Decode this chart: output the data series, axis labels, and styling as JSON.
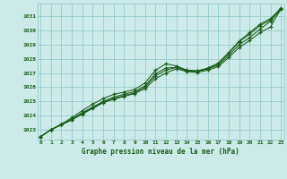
{
  "bg_color": "#cceae8",
  "grid_color": "#99cccc",
  "line_color": "#1a5c1a",
  "title": "Graphe pression niveau de la mer (hPa)",
  "ylabel_vals": [
    1023,
    1024,
    1025,
    1026,
    1027,
    1028,
    1029,
    1030,
    1031
  ],
  "xlim": [
    -0.3,
    23.3
  ],
  "ylim": [
    1022.3,
    1031.9
  ],
  "line1_x": [
    0,
    1,
    2,
    3,
    4,
    5,
    6,
    7,
    8,
    9,
    10,
    11,
    12,
    13,
    14,
    15,
    16,
    17,
    18,
    19,
    20,
    21,
    22,
    23
  ],
  "line1_y": [
    1022.5,
    1023.0,
    1023.35,
    1023.7,
    1024.15,
    1024.55,
    1024.95,
    1025.2,
    1025.4,
    1025.6,
    1026.0,
    1026.8,
    1027.2,
    1027.4,
    1027.2,
    1027.15,
    1027.3,
    1027.55,
    1028.25,
    1029.0,
    1029.5,
    1030.1,
    1030.65,
    1031.5
  ],
  "line2_x": [
    0,
    1,
    2,
    3,
    4,
    5,
    6,
    7,
    8,
    9,
    10,
    11,
    12,
    13,
    14,
    15,
    16,
    17,
    18,
    19,
    20,
    21,
    22,
    23
  ],
  "line2_y": [
    1022.5,
    1023.0,
    1023.35,
    1023.7,
    1024.1,
    1024.5,
    1024.9,
    1025.15,
    1025.35,
    1025.55,
    1025.9,
    1026.6,
    1027.0,
    1027.3,
    1027.1,
    1027.05,
    1027.2,
    1027.45,
    1028.1,
    1028.8,
    1029.3,
    1029.85,
    1030.25,
    1031.55
  ],
  "line3_x": [
    0,
    1,
    2,
    3,
    4,
    5,
    6,
    7,
    8,
    9,
    10,
    11,
    12,
    13,
    14,
    15,
    16,
    17,
    18,
    19,
    20,
    21,
    22,
    23
  ],
  "line3_y": [
    1022.5,
    1023.0,
    1023.4,
    1023.85,
    1024.35,
    1024.8,
    1025.2,
    1025.5,
    1025.65,
    1025.85,
    1026.3,
    1027.2,
    1027.65,
    1027.5,
    1027.2,
    1027.15,
    1027.35,
    1027.7,
    1028.45,
    1029.25,
    1029.85,
    1030.45,
    1030.85,
    1031.55
  ],
  "line4_x": [
    0,
    1,
    2,
    3,
    4,
    5,
    6,
    7,
    8,
    9,
    10,
    11,
    12,
    13,
    14,
    15,
    16,
    17,
    18,
    19,
    20,
    21,
    22,
    23
  ],
  "line4_y": [
    1022.5,
    1023.0,
    1023.35,
    1023.75,
    1024.2,
    1024.6,
    1025.0,
    1025.3,
    1025.5,
    1025.7,
    1026.1,
    1026.95,
    1027.35,
    1027.4,
    1027.15,
    1027.1,
    1027.3,
    1027.65,
    1028.4,
    1029.2,
    1029.75,
    1030.35,
    1030.75,
    1031.6
  ]
}
